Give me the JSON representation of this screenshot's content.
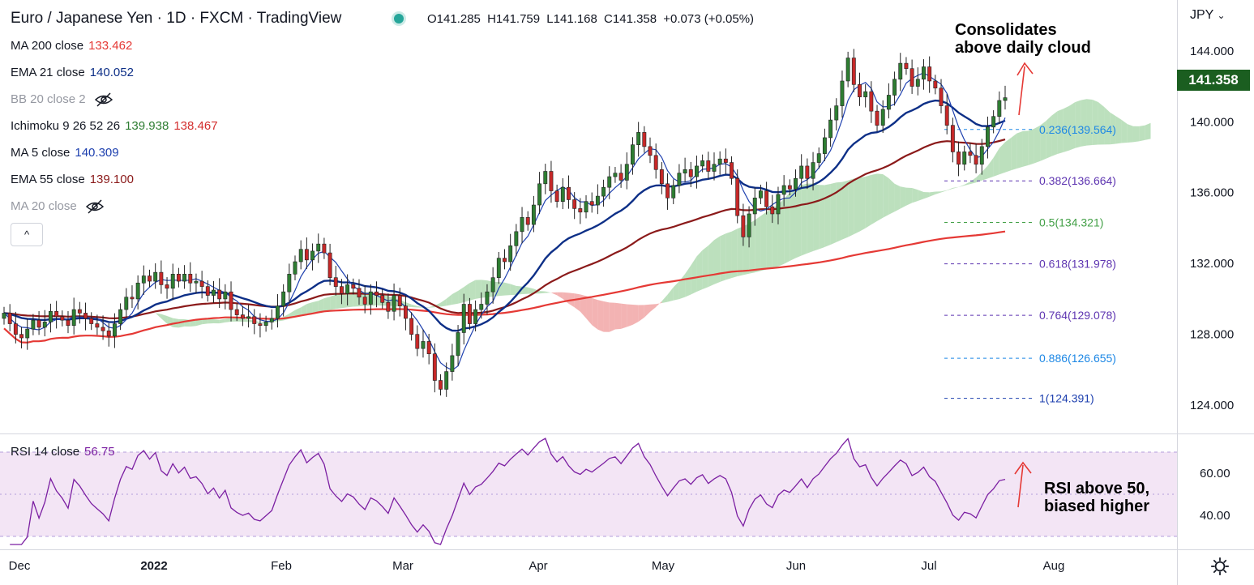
{
  "header": {
    "title": "Euro / Japanese Yen · 1D · FXCM · TradingView",
    "open": "O141.285",
    "high": "H141.759",
    "low": "L141.168",
    "close": "C141.358",
    "change": "+0.073 (+0.05%)",
    "currency": "JPY",
    "currency_caret": "⌄"
  },
  "indicators": {
    "ma200": {
      "label": "MA 200 close",
      "value": "133.462",
      "color": "#e53935"
    },
    "ema21": {
      "label": "EMA 21 close",
      "value": "140.052",
      "color": "#0d2f87"
    },
    "bb": {
      "label": "BB 20 close 2"
    },
    "ichimoku": {
      "label": "Ichimoku 9 26 52 26",
      "value1": "139.938",
      "value2": "138.467",
      "color1": "#2e7d32",
      "color2": "#d32f2f"
    },
    "ma5": {
      "label": "MA 5 close",
      "value": "140.309",
      "color": "#1e40af"
    },
    "ema55": {
      "label": "EMA 55 close",
      "value": "139.100",
      "color": "#8b1a1a"
    },
    "ma20": {
      "label": "MA 20 close"
    }
  },
  "collapse_icon": "^",
  "rsi": {
    "label": "RSI 14 close",
    "value": "56.75",
    "color": "#7b1fa2"
  },
  "annotations": {
    "top": [
      "Consolidates",
      "above daily cloud"
    ],
    "rsi": [
      "RSI above 50,",
      "biased higher"
    ]
  },
  "last_price": "141.358",
  "colors": {
    "up": "#2e7d32",
    "down": "#c62828",
    "cloud_bull": "#a5d6a7",
    "cloud_bear": "#ef9a9a",
    "rsi_band": "#f3e5f5"
  },
  "chart_data": {
    "type": "candlestick",
    "symbol": "EUR/JPY",
    "timeframe": "1D",
    "ylim": [
      123.0,
      145.5
    ],
    "y_ticks": [
      "124.000",
      "128.000",
      "132.000",
      "136.000",
      "140.000",
      "144.000"
    ],
    "x_ticks": [
      "Dec",
      "2022",
      "Feb",
      "Mar",
      "Apr",
      "May",
      "Jun",
      "Jul",
      "Aug"
    ],
    "fib_levels": [
      {
        "label": "0.236(139.564)",
        "value": 139.564,
        "color": "#1e88e5"
      },
      {
        "label": "0.382(136.664)",
        "value": 136.664,
        "color": "#5e35b1"
      },
      {
        "label": "0.5(134.321)",
        "value": 134.321,
        "color": "#43a047"
      },
      {
        "label": "0.618(131.978)",
        "value": 131.978,
        "color": "#5e35b1"
      },
      {
        "label": "0.764(129.078)",
        "value": 129.078,
        "color": "#5e35b1"
      },
      {
        "label": "0.886(126.655)",
        "value": 126.655,
        "color": "#1e88e5"
      },
      {
        "label": "1(124.391)",
        "value": 124.391,
        "color": "#1e40af"
      }
    ],
    "closes": [
      129.2,
      128.6,
      128.0,
      127.8,
      128.3,
      128.8,
      128.4,
      128.7,
      129.3,
      129.0,
      128.8,
      128.5,
      129.4,
      129.2,
      128.9,
      128.6,
      128.4,
      128.2,
      127.9,
      128.6,
      129.4,
      130.1,
      130.0,
      130.9,
      131.3,
      131.0,
      131.5,
      130.8,
      130.6,
      131.4,
      131.0,
      131.4,
      130.9,
      131.0,
      130.7,
      130.2,
      130.5,
      130.0,
      130.4,
      129.4,
      129.1,
      128.9,
      129.0,
      128.6,
      128.5,
      128.7,
      128.9,
      129.6,
      130.4,
      131.4,
      132.1,
      132.8,
      132.2,
      132.7,
      133.1,
      132.6,
      131.2,
      130.7,
      130.3,
      130.8,
      130.6,
      130.1,
      129.7,
      130.4,
      130.2,
      129.8,
      129.3,
      130.2,
      129.6,
      128.9,
      128.0,
      127.2,
      127.6,
      126.9,
      125.4,
      124.9,
      125.9,
      126.8,
      128.1,
      129.7,
      128.6,
      129.4,
      129.7,
      130.4,
      131.2,
      132.3,
      132.1,
      133.0,
      133.8,
      134.6,
      134.2,
      135.3,
      136.5,
      137.2,
      136.1,
      135.5,
      136.3,
      135.6,
      135.1,
      134.9,
      135.5,
      135.3,
      135.8,
      136.3,
      136.9,
      137.1,
      136.7,
      137.6,
      138.7,
      139.4,
      138.6,
      138.1,
      137.3,
      136.5,
      135.7,
      136.4,
      137.1,
      137.3,
      136.9,
      137.5,
      137.8,
      137.2,
      137.6,
      137.9,
      137.7,
      136.8,
      134.7,
      133.5,
      134.8,
      135.7,
      136.1,
      135.2,
      134.8,
      135.9,
      136.4,
      136.2,
      136.8,
      137.5,
      136.8,
      137.7,
      138.2,
      139.1,
      140.1,
      140.9,
      142.3,
      143.6,
      142.1,
      141.4,
      141.7,
      140.6,
      139.8,
      140.7,
      141.5,
      142.4,
      143.3,
      143.0,
      142.0,
      142.4,
      143.1,
      142.3,
      141.9,
      140.9,
      139.8,
      138.3,
      137.6,
      138.3,
      138.1,
      137.6,
      138.6,
      139.7,
      140.3,
      141.2,
      141.358
    ]
  }
}
